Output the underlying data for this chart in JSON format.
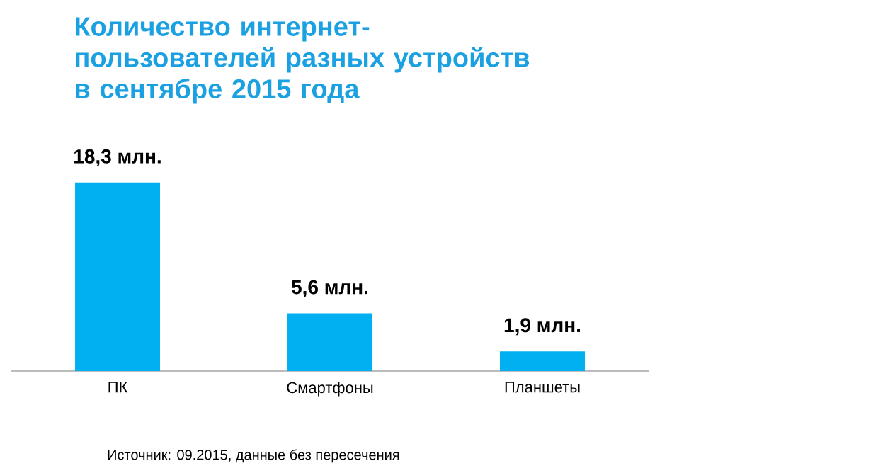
{
  "chart_data": {
    "type": "bar",
    "title": "Количество интернет-пользователей разных устройств в сентябре 2015 года",
    "categories": [
      "ПК",
      "Смартфоны",
      "Планшеты"
    ],
    "values": [
      18.3,
      5.6,
      1.9
    ],
    "value_labels": [
      "18,3 млн.",
      "5,6 млн.",
      "1,9 млн."
    ],
    "color": "#00b0f0",
    "annotations": [
      "Источник: 09.2015, данные без пересечения"
    ]
  }
}
